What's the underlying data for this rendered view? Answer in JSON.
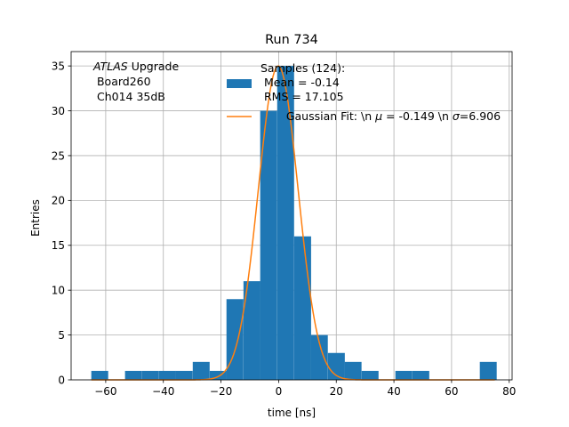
{
  "chart_data": {
    "type": "bar",
    "title": "Run 734",
    "xlabel": "time [ns]",
    "ylabel": "Entries",
    "xlim": [
      -72,
      81
    ],
    "ylim": [
      0,
      36.6
    ],
    "grid": true,
    "xticks": [
      -60,
      -40,
      -20,
      0,
      20,
      40,
      60,
      80
    ],
    "yticks": [
      0,
      5,
      10,
      15,
      20,
      25,
      30,
      35
    ],
    "annotation": {
      "italic": "ATLAS",
      "line1_rest": " Upgrade",
      "line2": " Board260",
      "line3": " Ch014 35dB"
    },
    "legend": {
      "placement": "top-right",
      "hist_label_line1": "Samples (124):",
      "hist_label_line2": " Mean = -0.14",
      "hist_label_line3": " RMS = 17.105",
      "fit_label_pre": "Gaussian Fit: \\n ",
      "fit_label_mu_sym": "μ",
      "fit_label_mid": " = -0.149 \\n ",
      "fit_label_sigma_sym": "σ",
      "fit_label_post": "=6.906"
    },
    "series": [
      {
        "name": "Samples (124)",
        "color": "#1f77b4",
        "bin_width": 5.86,
        "bins": [
          {
            "x0": -65.0,
            "count": 1
          },
          {
            "x0": -53.3,
            "count": 1
          },
          {
            "x0": -47.4,
            "count": 1
          },
          {
            "x0": -41.5,
            "count": 1
          },
          {
            "x0": -35.7,
            "count": 1
          },
          {
            "x0": -29.8,
            "count": 2
          },
          {
            "x0": -23.9,
            "count": 1
          },
          {
            "x0": -18.1,
            "count": 9
          },
          {
            "x0": -12.2,
            "count": 11
          },
          {
            "x0": -6.4,
            "count": 30
          },
          {
            "x0": -0.5,
            "count": 35
          },
          {
            "x0": 5.4,
            "count": 16
          },
          {
            "x0": 11.2,
            "count": 5
          },
          {
            "x0": 17.1,
            "count": 3
          },
          {
            "x0": 22.9,
            "count": 2
          },
          {
            "x0": 28.8,
            "count": 1
          },
          {
            "x0": 40.5,
            "count": 1
          },
          {
            "x0": 46.4,
            "count": 1
          },
          {
            "x0": 69.8,
            "count": 2
          }
        ]
      },
      {
        "name": "Gaussian Fit",
        "color": "#ff7f0e",
        "mu": -0.149,
        "sigma": 6.906,
        "amplitude": 35.0,
        "x_range": [
          -65,
          75
        ]
      }
    ]
  }
}
